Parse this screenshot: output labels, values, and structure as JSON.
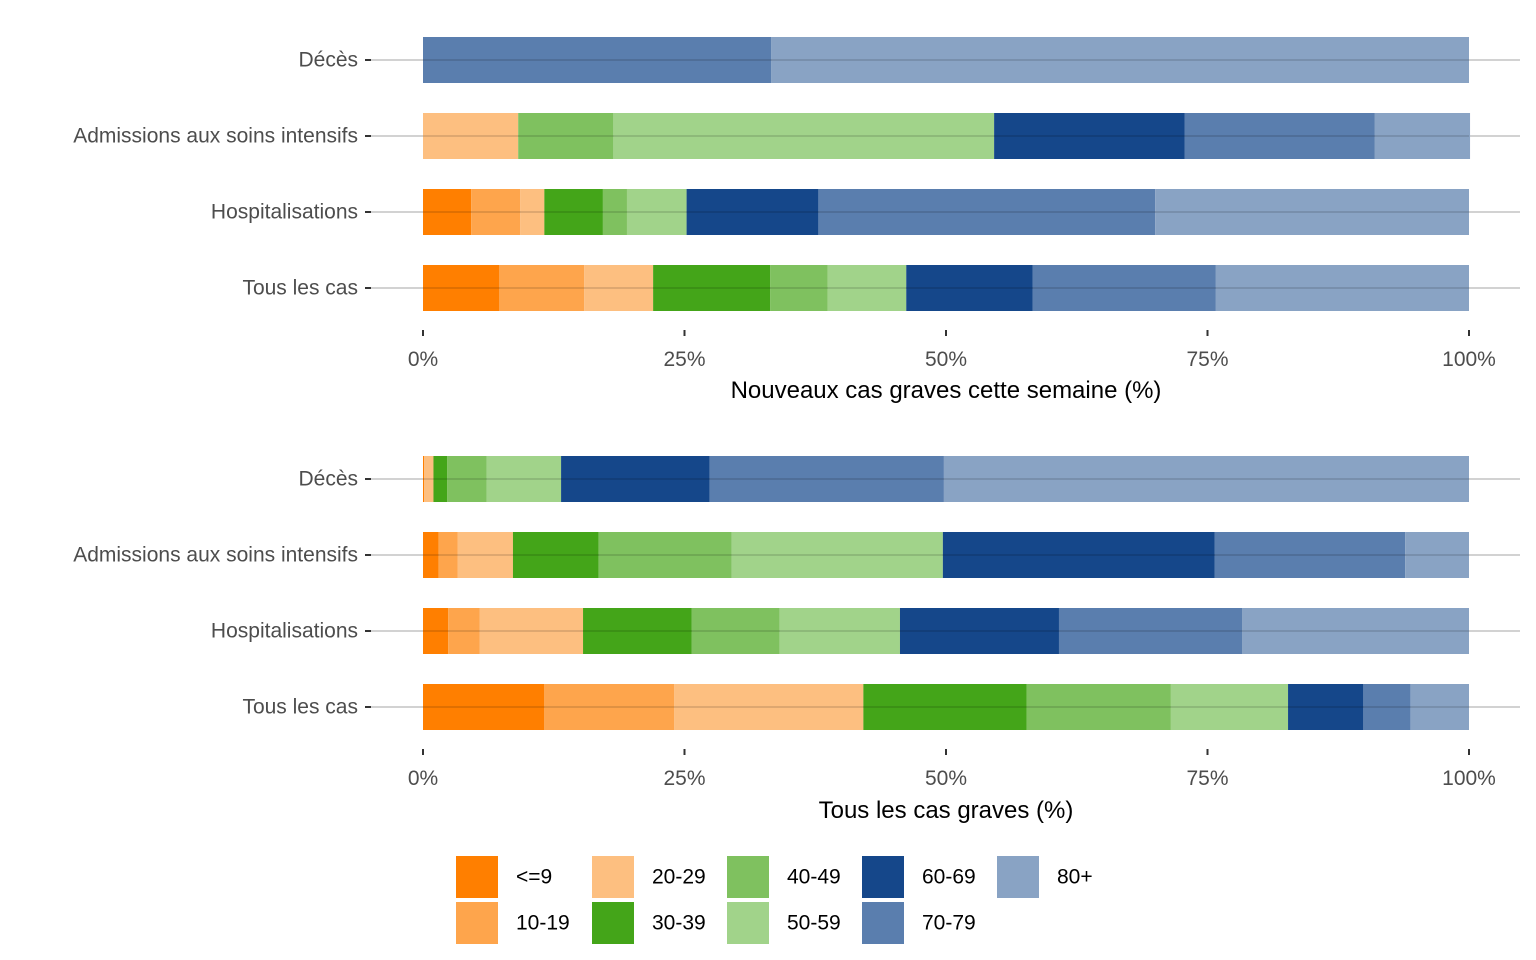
{
  "chart_data": {
    "type": "bar",
    "orientation": "horizontal",
    "stacked": "percent",
    "age_groups": [
      "<=9",
      "10-19",
      "20-29",
      "30-39",
      "40-49",
      "50-59",
      "60-69",
      "70-79",
      "80+"
    ],
    "colors": {
      "<=9": "#ff7f00",
      "10-19": "#fea54c",
      "20-29": "#fdbf80",
      "30-39": "#44a519",
      "40-49": "#7fc15f",
      "50-59": "#a1d38a",
      "60-69": "#15478a",
      "70-79": "#5a7eae",
      "80+": "#89a3c4"
    },
    "legend": {
      "placement": "bottom",
      "rows": 2,
      "entries": [
        "<=9",
        "10-19",
        "20-29",
        "30-39",
        "40-49",
        "50-59",
        "60-69",
        "70-79",
        "80+"
      ]
    },
    "panels": [
      {
        "xlabel": "Nouveaux cas graves cette semaine (%)",
        "xlim": [
          0,
          100
        ],
        "xticks": [
          "0%",
          "25%",
          "50%",
          "75%",
          "100%"
        ],
        "xtick_values": [
          0,
          25,
          50,
          75,
          100
        ],
        "categories": [
          "Décès",
          "Admissions aux soins intensifs",
          "Hospitalisations",
          "Tous les cas"
        ],
        "series": [
          {
            "name": "<=9",
            "values": [
              0,
              0,
              4.6,
              7.3
            ]
          },
          {
            "name": "10-19",
            "values": [
              0,
              0,
              4.7,
              8.1
            ]
          },
          {
            "name": "20-29",
            "values": [
              0,
              9.1,
              2.3,
              6.6
            ]
          },
          {
            "name": "30-39",
            "values": [
              0,
              0,
              5.6,
              11.2
            ]
          },
          {
            "name": "40-49",
            "values": [
              0,
              9.1,
              2.3,
              5.5
            ]
          },
          {
            "name": "50-59",
            "values": [
              0,
              36.4,
              5.7,
              7.5
            ]
          },
          {
            "name": "60-69",
            "values": [
              0,
              18.2,
              12.6,
              12.1
            ]
          },
          {
            "name": "70-79",
            "values": [
              33.3,
              18.2,
              32.2,
              17.5
            ]
          },
          {
            "name": "80+",
            "values": [
              66.7,
              9.1,
              30.0,
              24.2
            ]
          }
        ]
      },
      {
        "xlabel": "Tous les cas graves (%)",
        "xlim": [
          0,
          100
        ],
        "xticks": [
          "0%",
          "25%",
          "50%",
          "75%",
          "100%"
        ],
        "xtick_values": [
          0,
          25,
          50,
          75,
          100
        ],
        "categories": [
          "Décès",
          "Admissions aux soins intensifs",
          "Hospitalisations",
          "Tous les cas"
        ],
        "series": [
          {
            "name": "<=9",
            "values": [
              0.1,
              1.5,
              2.4,
              11.6
            ]
          },
          {
            "name": "10-19",
            "values": [
              0.0,
              1.8,
              3.0,
              12.4
            ]
          },
          {
            "name": "20-29",
            "values": [
              0.9,
              5.3,
              9.9,
              18.1
            ]
          },
          {
            "name": "30-39",
            "values": [
              1.3,
              8.2,
              10.4,
              15.6
            ]
          },
          {
            "name": "40-49",
            "values": [
              3.8,
              12.7,
              8.4,
              13.8
            ]
          },
          {
            "name": "50-59",
            "values": [
              7.1,
              20.2,
              11.5,
              11.2
            ]
          },
          {
            "name": "60-69",
            "values": [
              14.2,
              26.0,
              15.2,
              7.2
            ]
          },
          {
            "name": "70-79",
            "values": [
              22.4,
              18.2,
              17.5,
              4.5
            ]
          },
          {
            "name": "80+",
            "values": [
              50.2,
              6.1,
              21.7,
              5.6
            ]
          }
        ]
      }
    ]
  }
}
